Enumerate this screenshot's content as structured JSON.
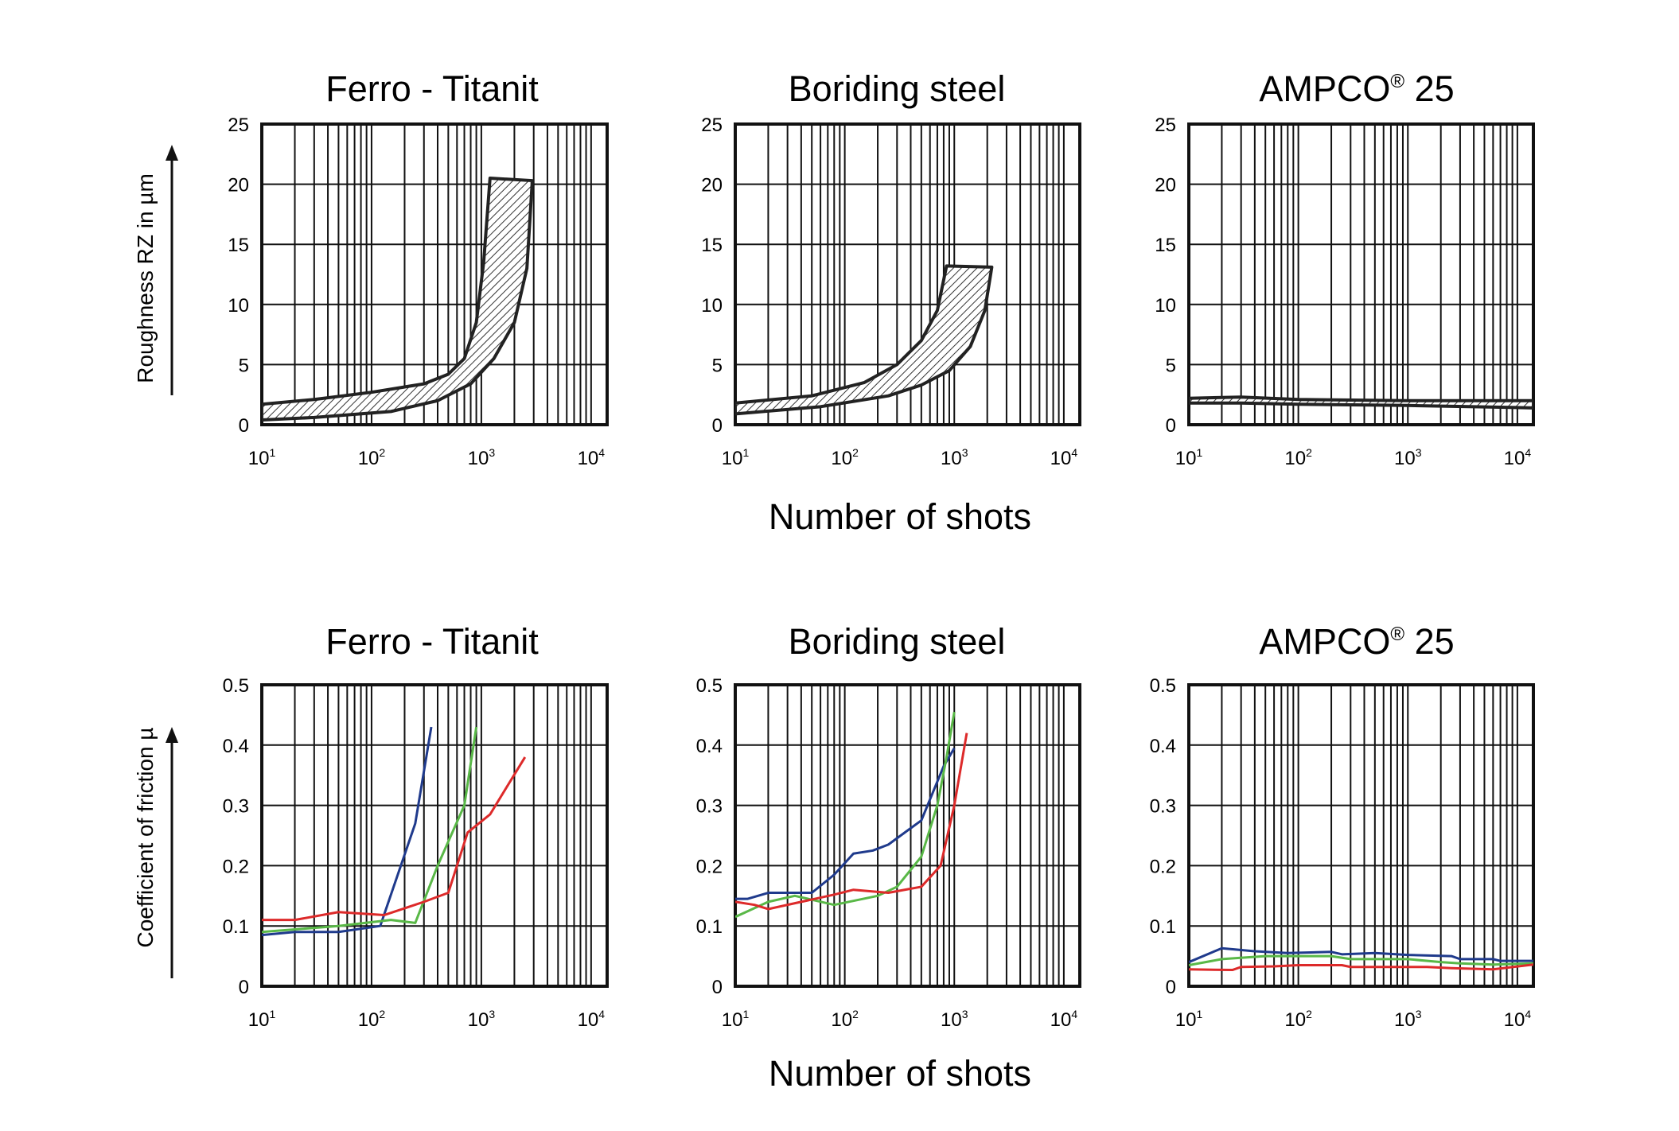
{
  "figure": {
    "xlabel_top": "Number of shots",
    "xlabel_bottom": "Number of shots",
    "ylabel_top": "Roughness RZ in µm",
    "ylabel_bottom": "Coefficient of friction µ",
    "x_tick_base": "10",
    "x_tick_powers": [
      "1",
      "2",
      "3",
      "4"
    ]
  },
  "chart_data": [
    {
      "type": "area",
      "title": "Ferro - Titanit",
      "ylim": [
        0,
        25
      ],
      "yticks": [
        0,
        5,
        10,
        15,
        20,
        25
      ],
      "xlim": [
        10,
        14000
      ],
      "xscale": "log",
      "grid": true,
      "band": {
        "upper": [
          [
            10,
            1.7
          ],
          [
            30,
            2.1
          ],
          [
            100,
            2.7
          ],
          [
            300,
            3.4
          ],
          [
            500,
            4.2
          ],
          [
            700,
            5.5
          ],
          [
            900,
            8.5
          ],
          [
            1050,
            13.5
          ],
          [
            1200,
            20.5
          ]
        ],
        "lower": [
          [
            10,
            0.4
          ],
          [
            30,
            0.6
          ],
          [
            150,
            1.1
          ],
          [
            400,
            2.0
          ],
          [
            800,
            3.4
          ],
          [
            1300,
            5.5
          ],
          [
            2000,
            8.5
          ],
          [
            2600,
            13.0
          ],
          [
            2900,
            20.0
          ]
        ],
        "top_edge": [
          [
            1200,
            20.5
          ],
          [
            2900,
            20.3
          ]
        ]
      }
    },
    {
      "type": "area",
      "title": "Boriding steel",
      "ylim": [
        0,
        25
      ],
      "yticks": [
        0,
        5,
        10,
        15,
        20,
        25
      ],
      "xlim": [
        10,
        14000
      ],
      "xscale": "log",
      "grid": true,
      "band": {
        "upper": [
          [
            10,
            1.8
          ],
          [
            50,
            2.4
          ],
          [
            150,
            3.5
          ],
          [
            300,
            5.0
          ],
          [
            500,
            7.0
          ],
          [
            700,
            9.5
          ],
          [
            850,
            13.2
          ]
        ],
        "lower": [
          [
            10,
            0.9
          ],
          [
            60,
            1.5
          ],
          [
            250,
            2.4
          ],
          [
            500,
            3.3
          ],
          [
            900,
            4.5
          ],
          [
            1400,
            6.5
          ],
          [
            1900,
            9.5
          ],
          [
            2200,
            13.1
          ]
        ],
        "top_edge": [
          [
            850,
            13.2
          ],
          [
            2200,
            13.1
          ]
        ]
      }
    },
    {
      "type": "area",
      "title": "AMPCO",
      "title_superscript": "®",
      "title_suffix": " 25",
      "ylim": [
        0,
        25
      ],
      "yticks": [
        0,
        5,
        10,
        15,
        20,
        25
      ],
      "xlim": [
        10,
        14000
      ],
      "xscale": "log",
      "grid": true,
      "band": {
        "upper": [
          [
            10,
            2.2
          ],
          [
            30,
            2.3
          ],
          [
            100,
            2.1
          ],
          [
            1000,
            2.0
          ],
          [
            14000,
            2.0
          ]
        ],
        "lower": [
          [
            10,
            1.8
          ],
          [
            30,
            1.8
          ],
          [
            100,
            1.7
          ],
          [
            1000,
            1.6
          ],
          [
            14000,
            1.4
          ]
        ],
        "top_edge": []
      }
    },
    {
      "type": "line",
      "title": "Ferro - Titanit",
      "ylim": [
        0,
        0.5
      ],
      "yticks": [
        "0",
        "0.1",
        "0.2",
        "0.3",
        "0.4",
        "0.5"
      ],
      "xlim": [
        10,
        14000
      ],
      "xscale": "log",
      "grid": true,
      "series": [
        {
          "color": "#1f3a8c",
          "points": [
            [
              10,
              0.085
            ],
            [
              20,
              0.09
            ],
            [
              50,
              0.09
            ],
            [
              120,
              0.1
            ],
            [
              250,
              0.27
            ],
            [
              350,
              0.43
            ]
          ]
        },
        {
          "color": "#59b847",
          "points": [
            [
              10,
              0.09
            ],
            [
              50,
              0.1
            ],
            [
              150,
              0.11
            ],
            [
              250,
              0.105
            ],
            [
              400,
              0.2
            ],
            [
              700,
              0.3
            ],
            [
              900,
              0.43
            ]
          ]
        },
        {
          "color": "#dd2a2a",
          "points": [
            [
              10,
              0.11
            ],
            [
              20,
              0.11
            ],
            [
              50,
              0.123
            ],
            [
              130,
              0.118
            ],
            [
              300,
              0.14
            ],
            [
              500,
              0.155
            ],
            [
              750,
              0.255
            ],
            [
              1200,
              0.285
            ],
            [
              2500,
              0.38
            ]
          ]
        }
      ]
    },
    {
      "type": "line",
      "title": "Boriding steel",
      "ylim": [
        0,
        0.5
      ],
      "yticks": [
        "0",
        "0.1",
        "0.2",
        "0.3",
        "0.4",
        "0.5"
      ],
      "xlim": [
        10,
        14000
      ],
      "xscale": "log",
      "grid": true,
      "series": [
        {
          "color": "#1f3a8c",
          "points": [
            [
              10,
              0.145
            ],
            [
              13,
              0.145
            ],
            [
              20,
              0.155
            ],
            [
              50,
              0.155
            ],
            [
              80,
              0.185
            ],
            [
              120,
              0.22
            ],
            [
              180,
              0.225
            ],
            [
              250,
              0.235
            ],
            [
              500,
              0.275
            ],
            [
              800,
              0.365
            ],
            [
              1000,
              0.395
            ]
          ]
        },
        {
          "color": "#59b847",
          "points": [
            [
              10,
              0.115
            ],
            [
              20,
              0.14
            ],
            [
              35,
              0.15
            ],
            [
              80,
              0.135
            ],
            [
              200,
              0.15
            ],
            [
              300,
              0.165
            ],
            [
              500,
              0.215
            ],
            [
              700,
              0.3
            ],
            [
              850,
              0.38
            ],
            [
              1000,
              0.455
            ]
          ]
        },
        {
          "color": "#dd2a2a",
          "points": [
            [
              10,
              0.14
            ],
            [
              15,
              0.135
            ],
            [
              20,
              0.128
            ],
            [
              40,
              0.14
            ],
            [
              80,
              0.152
            ],
            [
              120,
              0.16
            ],
            [
              250,
              0.155
            ],
            [
              500,
              0.165
            ],
            [
              750,
              0.2
            ],
            [
              1000,
              0.3
            ],
            [
              1300,
              0.42
            ]
          ]
        }
      ]
    },
    {
      "type": "line",
      "title": "AMPCO",
      "title_superscript": "®",
      "title_suffix": " 25",
      "ylim": [
        0,
        0.5
      ],
      "yticks": [
        "0",
        "0.1",
        "0.2",
        "0.3",
        "0.4",
        "0.5"
      ],
      "xlim": [
        10,
        14000
      ],
      "xscale": "log",
      "grid": true,
      "series": [
        {
          "color": "#1f3a8c",
          "points": [
            [
              10,
              0.04
            ],
            [
              20,
              0.063
            ],
            [
              40,
              0.058
            ],
            [
              80,
              0.055
            ],
            [
              200,
              0.057
            ],
            [
              250,
              0.053
            ],
            [
              500,
              0.055
            ],
            [
              1000,
              0.052
            ],
            [
              2500,
              0.05
            ],
            [
              3000,
              0.045
            ],
            [
              6000,
              0.045
            ],
            [
              7000,
              0.042
            ],
            [
              14000,
              0.042
            ]
          ]
        },
        {
          "color": "#59b847",
          "points": [
            [
              10,
              0.035
            ],
            [
              20,
              0.045
            ],
            [
              50,
              0.05
            ],
            [
              200,
              0.05
            ],
            [
              300,
              0.045
            ],
            [
              1000,
              0.045
            ],
            [
              2000,
              0.04
            ],
            [
              3000,
              0.038
            ],
            [
              6000,
              0.036
            ],
            [
              14000,
              0.038
            ]
          ]
        },
        {
          "color": "#dd2a2a",
          "points": [
            [
              10,
              0.028
            ],
            [
              25,
              0.027
            ],
            [
              30,
              0.032
            ],
            [
              60,
              0.033
            ],
            [
              100,
              0.035
            ],
            [
              250,
              0.035
            ],
            [
              300,
              0.032
            ],
            [
              1500,
              0.032
            ],
            [
              2500,
              0.03
            ],
            [
              6000,
              0.028
            ],
            [
              14000,
              0.036
            ]
          ]
        }
      ]
    }
  ]
}
